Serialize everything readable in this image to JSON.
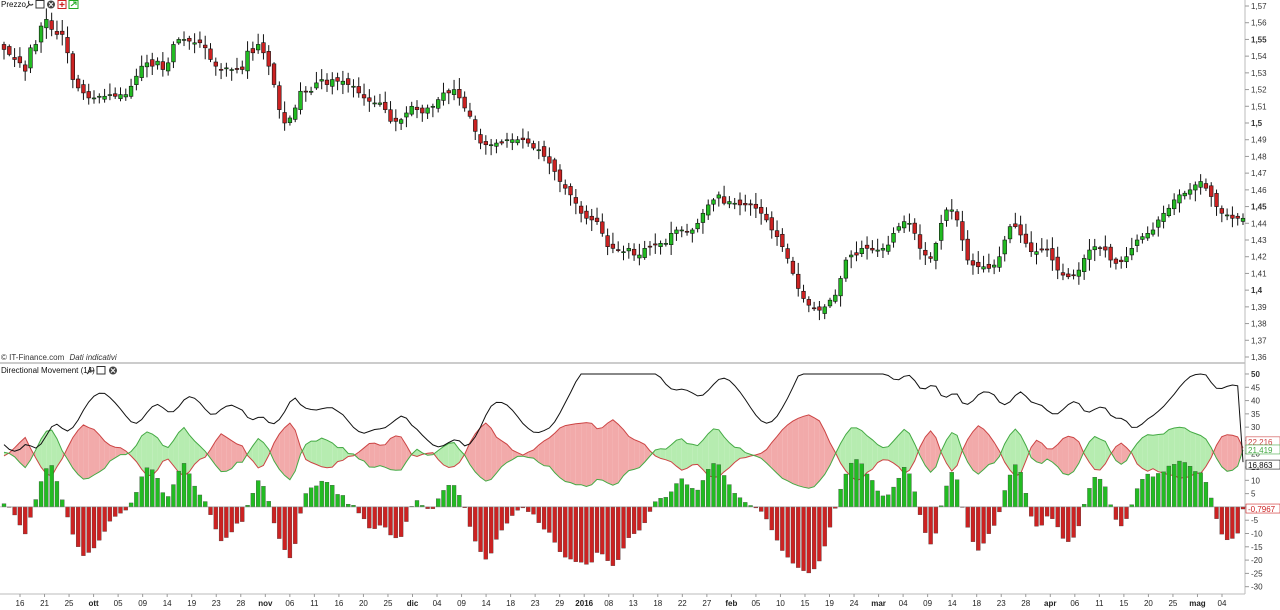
{
  "price_panel": {
    "title": "Prezzo",
    "icons": [
      "wrench-icon",
      "window-icon",
      "close-icon",
      "add-icon",
      "export-icon"
    ],
    "credit": "© IT-Finance.com",
    "credit_note": "Dati indicativi",
    "colors": {
      "up": "#22bb22",
      "down": "#cc2222"
    }
  },
  "dm_panel": {
    "title": "Directional Movement (14)",
    "icons": [
      "wrench-icon",
      "window-icon",
      "close-icon"
    ],
    "values": [
      {
        "text": "22,216",
        "color": "#cc4444"
      },
      {
        "text": "21,419",
        "color": "#44aa44"
      },
      {
        "text": "16,863",
        "color": "#111111"
      },
      {
        "text": "-0,7967",
        "color": "#cc2222"
      }
    ]
  },
  "x_axis_labels": [
    {
      "t": "16"
    },
    {
      "t": "21"
    },
    {
      "t": "25"
    },
    {
      "t": "ott",
      "b": true
    },
    {
      "t": "05"
    },
    {
      "t": "09"
    },
    {
      "t": "14"
    },
    {
      "t": "19"
    },
    {
      "t": "23"
    },
    {
      "t": "28"
    },
    {
      "t": "nov",
      "b": true
    },
    {
      "t": "06"
    },
    {
      "t": "11"
    },
    {
      "t": "16"
    },
    {
      "t": "20"
    },
    {
      "t": "25"
    },
    {
      "t": "dic",
      "b": true
    },
    {
      "t": "04"
    },
    {
      "t": "09"
    },
    {
      "t": "14"
    },
    {
      "t": "18"
    },
    {
      "t": "23"
    },
    {
      "t": "29"
    },
    {
      "t": "2016",
      "b": true
    },
    {
      "t": "08"
    },
    {
      "t": "13"
    },
    {
      "t": "18"
    },
    {
      "t": "22"
    },
    {
      "t": "27"
    },
    {
      "t": "feb",
      "b": true
    },
    {
      "t": "05"
    },
    {
      "t": "10"
    },
    {
      "t": "15"
    },
    {
      "t": "19"
    },
    {
      "t": "24"
    },
    {
      "t": "mar",
      "b": true
    },
    {
      "t": "04"
    },
    {
      "t": "09"
    },
    {
      "t": "14"
    },
    {
      "t": "18"
    },
    {
      "t": "23"
    },
    {
      "t": "28"
    },
    {
      "t": "apr",
      "b": true
    },
    {
      "t": "06"
    },
    {
      "t": "11"
    },
    {
      "t": "15"
    },
    {
      "t": "20"
    },
    {
      "t": "25"
    },
    {
      "t": "mag",
      "b": true
    },
    {
      "t": "04"
    }
  ],
  "chart_data": [
    {
      "type": "candlestick",
      "title": "Prezzo",
      "ylim": [
        1.36,
        1.57
      ],
      "y_ticks": [
        "1,57",
        "1,56",
        "1,55",
        "1,54",
        "1,53",
        "1,52",
        "1,51",
        "1,5",
        "1,49",
        "1,48",
        "1,47",
        "1,46",
        "1,45",
        "1,44",
        "1,43",
        "1,42",
        "1,41",
        "1,4",
        "1,39",
        "1,38",
        "1,37",
        "1,36"
      ],
      "y_ticks_bold": [
        "1,55",
        "1,5",
        "1,45",
        "1,4"
      ],
      "close_series": [
        1.544,
        1.541,
        1.538,
        1.536,
        1.531,
        1.545,
        1.547,
        1.558,
        1.562,
        1.556,
        1.553,
        1.553,
        1.542,
        1.526,
        1.521,
        1.518,
        1.515,
        1.515,
        1.516,
        1.516,
        1.517,
        1.516,
        1.517,
        1.517,
        1.522,
        1.528,
        1.534,
        1.536,
        1.534,
        1.537,
        1.532,
        1.536,
        1.547,
        1.55,
        1.55,
        1.549,
        1.548,
        1.548,
        1.545,
        1.538,
        1.534,
        1.532,
        1.533,
        1.532,
        1.532,
        1.532,
        1.543,
        1.542,
        1.547,
        1.542,
        1.534,
        1.523,
        1.508,
        1.5,
        1.503,
        1.509,
        1.519,
        1.519,
        1.519,
        1.524,
        1.526,
        1.523,
        1.526,
        1.525,
        1.525,
        1.523,
        1.522,
        1.518,
        1.515,
        1.513,
        1.512,
        1.512,
        1.508,
        1.501,
        1.501,
        1.502,
        1.506,
        1.51,
        1.508,
        1.506,
        1.509,
        1.51,
        1.514,
        1.518,
        1.518,
        1.52,
        1.515,
        1.509,
        1.504,
        1.495,
        1.488,
        1.487,
        1.487,
        1.488,
        1.488,
        1.49,
        1.49,
        1.49,
        1.49,
        1.488,
        1.485,
        1.484,
        1.48,
        1.476,
        1.471,
        1.465,
        1.461,
        1.457,
        1.452,
        1.446,
        1.443,
        1.442,
        1.441,
        1.434,
        1.426,
        1.425,
        1.424,
        1.423,
        1.425,
        1.421,
        1.421,
        1.425,
        1.426,
        1.427,
        1.428,
        1.428,
        1.434,
        1.436,
        1.436,
        1.435,
        1.436,
        1.44,
        1.446,
        1.451,
        1.454,
        1.457,
        1.452,
        1.453,
        1.452,
        1.451,
        1.451,
        1.451,
        1.449,
        1.446,
        1.442,
        1.436,
        1.432,
        1.426,
        1.419,
        1.41,
        1.401,
        1.395,
        1.391,
        1.389,
        1.388,
        1.39,
        1.394,
        1.397,
        1.407,
        1.418,
        1.421,
        1.421,
        1.425,
        1.425,
        1.424,
        1.424,
        1.425,
        1.427,
        1.434,
        1.438,
        1.441,
        1.44,
        1.434,
        1.425,
        1.421,
        1.419,
        1.428,
        1.44,
        1.448,
        1.448,
        1.442,
        1.43,
        1.418,
        1.415,
        1.414,
        1.414,
        1.413,
        1.415,
        1.42,
        1.43,
        1.438,
        1.438,
        1.433,
        1.428,
        1.423,
        1.423,
        1.424,
        1.424,
        1.418,
        1.412,
        1.409,
        1.408,
        1.409,
        1.412,
        1.419,
        1.424,
        1.426,
        1.425,
        1.424,
        1.418,
        1.416,
        1.417,
        1.42,
        1.425,
        1.43,
        1.432,
        1.434,
        1.436,
        1.442,
        1.446,
        1.449,
        1.454,
        1.457,
        1.458,
        1.46,
        1.463,
        1.465,
        1.461,
        1.456,
        1.45,
        1.446,
        1.445,
        1.443,
        1.443,
        1.443
      ],
      "dates": "daily, mid-September 2015 to early May 2016"
    },
    {
      "type": "line+bar",
      "title": "Directional Movement (14)",
      "ylim": [
        -32,
        53
      ],
      "y_ticks": [
        "50",
        "45",
        "40",
        "35",
        "30",
        "25",
        "20",
        "15",
        "10",
        "5",
        "0",
        "-5",
        "-10",
        "-15",
        "-20",
        "-25",
        "-30"
      ],
      "y_ticks_bold": [
        "50"
      ],
      "series": [
        {
          "name": "22,216",
          "color": "#cc4444",
          "fill": "#f2aaaa",
          "role": "DI-"
        },
        {
          "name": "21,419",
          "color": "#44aa44",
          "fill": "#b6ecb0",
          "role": "DI+"
        },
        {
          "name": "16,863",
          "color": "#111111",
          "role": "ADX"
        },
        {
          "name": "-0,7967",
          "color_up": "#22bb22",
          "color_down": "#cc2222",
          "role": "histogram"
        }
      ],
      "last_values": {
        "di_minus": 22.216,
        "di_plus": 21.419,
        "adx": 16.863,
        "hist": -0.7967
      }
    }
  ]
}
